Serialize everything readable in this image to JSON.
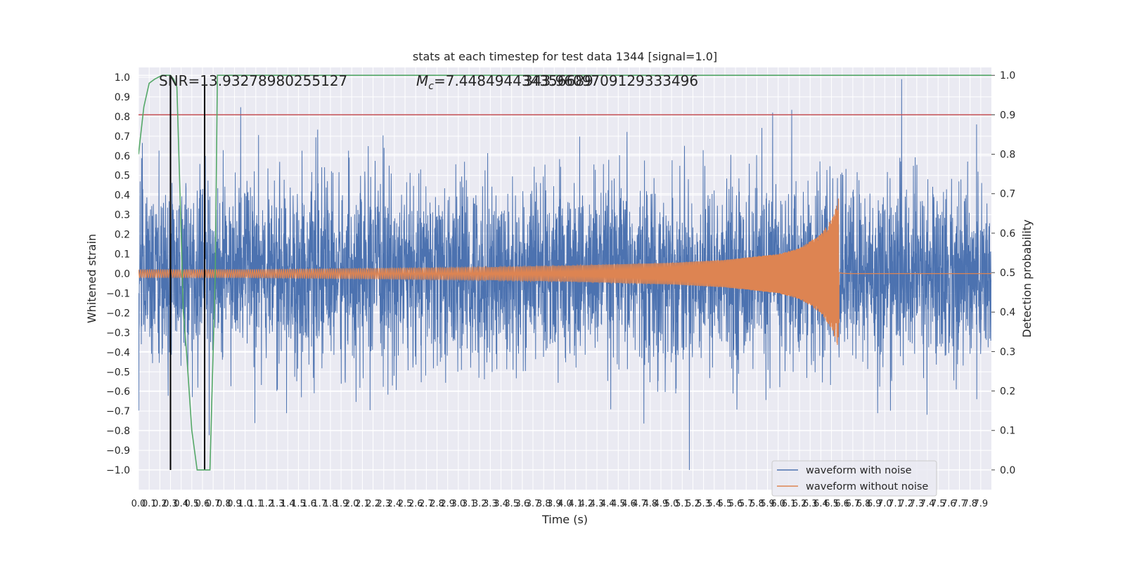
{
  "chart_data": {
    "type": "line",
    "title": "stats at each timestep for test data 1344 [signal=1.0]",
    "xlabel": "Time (s)",
    "ylabel_left": "Whitened strain",
    "ylabel_right": "Detection probability",
    "xlim": [
      0.0,
      8.0
    ],
    "ylim_left": [
      -1.1,
      1.05
    ],
    "ylim_right": [
      -0.05,
      1.02
    ],
    "grid": true,
    "annotations": {
      "snr": "SNR=13.93278980255127",
      "mc_prefix": "M",
      "mc_subscript": "c",
      "mc_value": "=7.448494434356689",
      "overlap": "343.9609709129333496"
    },
    "legend": {
      "location": "lower-right",
      "entries": [
        {
          "label": "waveform with noise",
          "color": "#4c72b0"
        },
        {
          "label": "waveform without noise",
          "color": "#dd8452"
        }
      ]
    },
    "colors": {
      "noise": "#4c72b0",
      "clean": "#dd8452",
      "probability": "#55a868",
      "threshold": "#c44e52",
      "marker": "#000000",
      "grid": "#ffffff",
      "background": "#eaeaf2"
    },
    "x_ticks": [
      "0.0",
      "0.1",
      "0.2",
      "0.3",
      "0.4",
      "0.5",
      "0.6",
      "0.7",
      "0.8",
      "0.9",
      "1.0",
      "1.1",
      "1.2",
      "1.3",
      "1.4",
      "1.5",
      "1.6",
      "1.7",
      "1.8",
      "1.9",
      "2.0",
      "2.1",
      "2.2",
      "2.3",
      "2.4",
      "2.5",
      "2.6",
      "2.7",
      "2.8",
      "2.9",
      "3.0",
      "3.1",
      "3.2",
      "3.3",
      "3.4",
      "3.5",
      "3.6",
      "3.7",
      "3.8",
      "3.9",
      "4.0",
      "4.1",
      "4.2",
      "4.3",
      "4.4",
      "4.5",
      "4.6",
      "4.7",
      "4.8",
      "4.9",
      "5.0",
      "5.1",
      "5.2",
      "5.3",
      "5.4",
      "5.5",
      "5.6",
      "5.7",
      "5.8",
      "5.9",
      "6.0",
      "6.1",
      "6.2",
      "6.3",
      "6.4",
      "6.5",
      "6.6",
      "6.7",
      "6.8",
      "6.9",
      "7.0",
      "7.1",
      "7.2",
      "7.3",
      "7.4",
      "7.5",
      "7.6",
      "7.7",
      "7.8",
      "7.9"
    ],
    "y_left_ticks": [
      "1.0",
      "0.9",
      "0.8",
      "0.7",
      "0.6",
      "0.5",
      "0.4",
      "0.3",
      "0.2",
      "0.1",
      "0.0",
      "−0.1",
      "−0.2",
      "−0.3",
      "−0.4",
      "−0.5",
      "−0.6",
      "−0.7",
      "−0.8",
      "−0.9",
      "−1.0"
    ],
    "y_right_ticks": [
      "1.0",
      "0.9",
      "0.8",
      "0.7",
      "0.6",
      "0.5",
      "0.4",
      "0.3",
      "0.2",
      "0.1",
      "0.0"
    ],
    "series": [
      {
        "name": "waveform with noise",
        "axis": "left",
        "description": "noisy whitened strain, amplitude roughly within -1.0 to 1.0 over 0-8 s"
      },
      {
        "name": "waveform without noise",
        "axis": "left",
        "kind": "chirp",
        "merger_time": 6.57,
        "envelope": {
          "t": [
            0.0,
            1.0,
            2.0,
            3.0,
            4.0,
            5.0,
            5.5,
            6.0,
            6.2,
            6.4,
            6.5,
            6.55,
            6.57
          ],
          "amp": [
            0.02,
            0.02,
            0.025,
            0.03,
            0.04,
            0.055,
            0.07,
            0.1,
            0.13,
            0.2,
            0.28,
            0.35,
            0.4
          ]
        },
        "post_merger_level": 0.005
      },
      {
        "name": "detection probability",
        "axis": "right",
        "t": [
          0.0,
          0.05,
          0.1,
          0.15,
          0.22,
          0.3,
          0.33,
          0.36,
          0.4,
          0.42,
          0.45,
          0.5,
          0.55,
          0.6,
          0.63,
          0.67,
          0.72,
          0.74,
          8.0
        ],
        "p": [
          0.8,
          0.92,
          0.98,
          0.99,
          1.0,
          1.0,
          0.99,
          0.97,
          0.6,
          0.4,
          0.3,
          0.1,
          0.0,
          0.0,
          0.0,
          0.0,
          0.5,
          1.0,
          1.0
        ]
      }
    ],
    "threshold": {
      "axis": "right",
      "value": 0.9
    },
    "vertical_markers": {
      "x": [
        0.3,
        0.62
      ],
      "y_from": -1.0,
      "y_to": 1.0
    }
  }
}
